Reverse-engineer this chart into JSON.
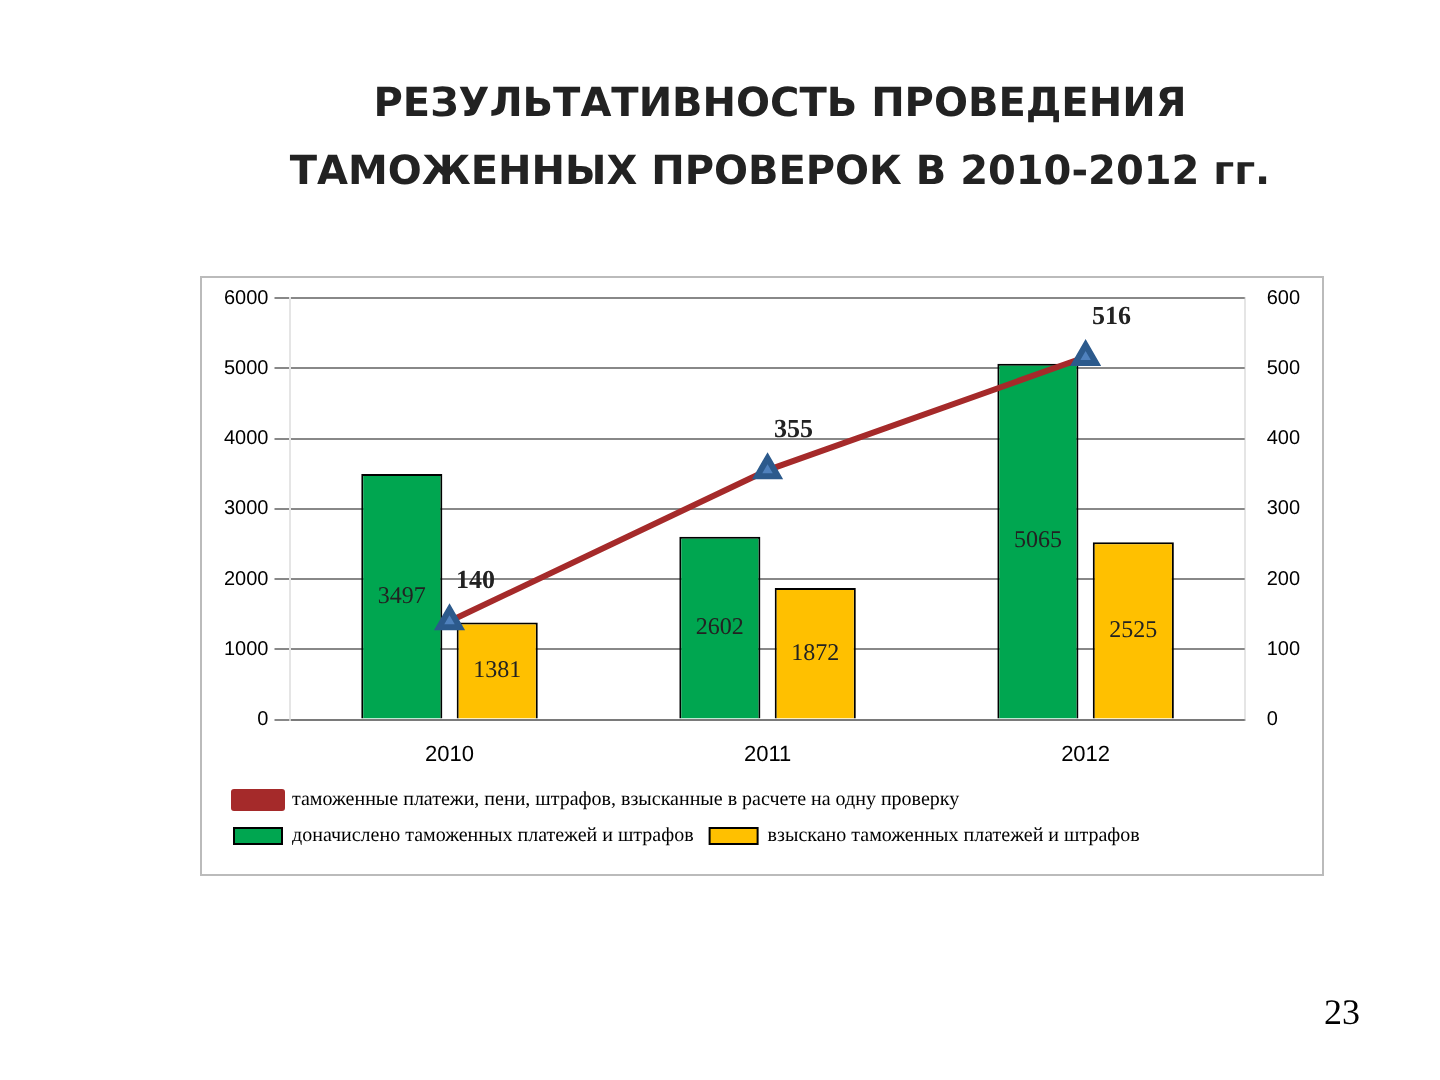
{
  "chart_data": {
    "type": "bar",
    "title": "РЕЗУЛЬТАТИВНОСТЬ ПРОВЕДЕНИЯ ТАМОЖЕННЫХ ПРОВЕРОК В 2010-2012 гг.",
    "categories": [
      "2010",
      "2011",
      "2012"
    ],
    "series": [
      {
        "name": "доначислено таможенных платежей и штрафов",
        "color": "#00a650",
        "values": [
          3497,
          2602,
          5065
        ]
      },
      {
        "name": "взыскано таможенных платежей и штрафов",
        "color": "#ffc000",
        "values": [
          1381,
          1872,
          2525
        ]
      },
      {
        "name": "таможенные платежи, пени, штрафов, взысканные в расчете на одну проверку",
        "type": "line",
        "axis": "y2",
        "color": "#a52a2a",
        "marker": "triangle",
        "values": [
          140,
          355,
          516
        ]
      }
    ],
    "ylim": [
      0,
      6000
    ],
    "yticks": [
      0,
      1000,
      2000,
      3000,
      4000,
      5000,
      6000
    ],
    "y2lim": [
      0,
      600
    ],
    "y2ticks": [
      0,
      100,
      200,
      300,
      400,
      500,
      600
    ],
    "grid": "y",
    "legend": "bottom",
    "data_labels": true,
    "annotations": [
      "23"
    ]
  }
}
